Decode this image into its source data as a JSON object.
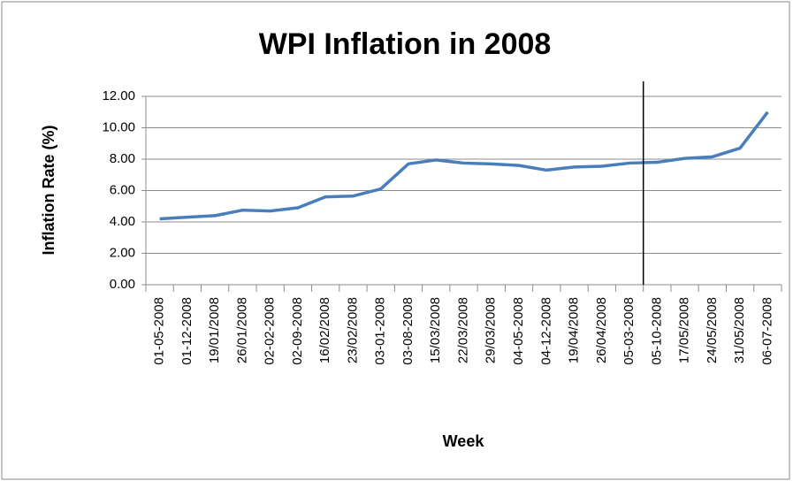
{
  "chart_data": {
    "type": "line",
    "title": "WPI Inflation in 2008",
    "x_label": "Week",
    "y_label": "Inflation Rate (%)",
    "categories": [
      "01-05-2008",
      "01-12-2008",
      "19/01/2008",
      "26/01/2008",
      "02-02-2008",
      "02-09-2008",
      "16/02/2008",
      "23/02/2008",
      "03-01-2008",
      "03-08-2008",
      "15/03/2008",
      "22/03/2008",
      "29/03/2008",
      "04-05-2008",
      "04-12-2008",
      "19/04/2008",
      "26/04/2008",
      "05-03-2008",
      "05-10-2008",
      "17/05/2008",
      "24/05/2008",
      "31/05/2008",
      "06-07-2008"
    ],
    "series": [
      {
        "name": "WPI Inflation",
        "color": "#4a7ebb",
        "values": [
          4.2,
          4.3,
          4.4,
          4.75,
          4.7,
          4.9,
          5.6,
          5.65,
          6.1,
          7.7,
          7.95,
          7.75,
          7.7,
          7.6,
          7.3,
          7.5,
          7.55,
          7.75,
          7.8,
          8.05,
          8.15,
          8.7,
          11.0
        ]
      }
    ],
    "ylim": [
      0,
      12
    ],
    "yticks": [
      {
        "value": 0,
        "label": "0.00"
      },
      {
        "value": 2,
        "label": "2.00"
      },
      {
        "value": 4,
        "label": "4.00"
      },
      {
        "value": 6,
        "label": "6.00"
      },
      {
        "value": 8,
        "label": "8.00"
      },
      {
        "value": 10,
        "label": "10.00"
      },
      {
        "value": 12,
        "label": "12.00"
      }
    ],
    "grid": true
  }
}
